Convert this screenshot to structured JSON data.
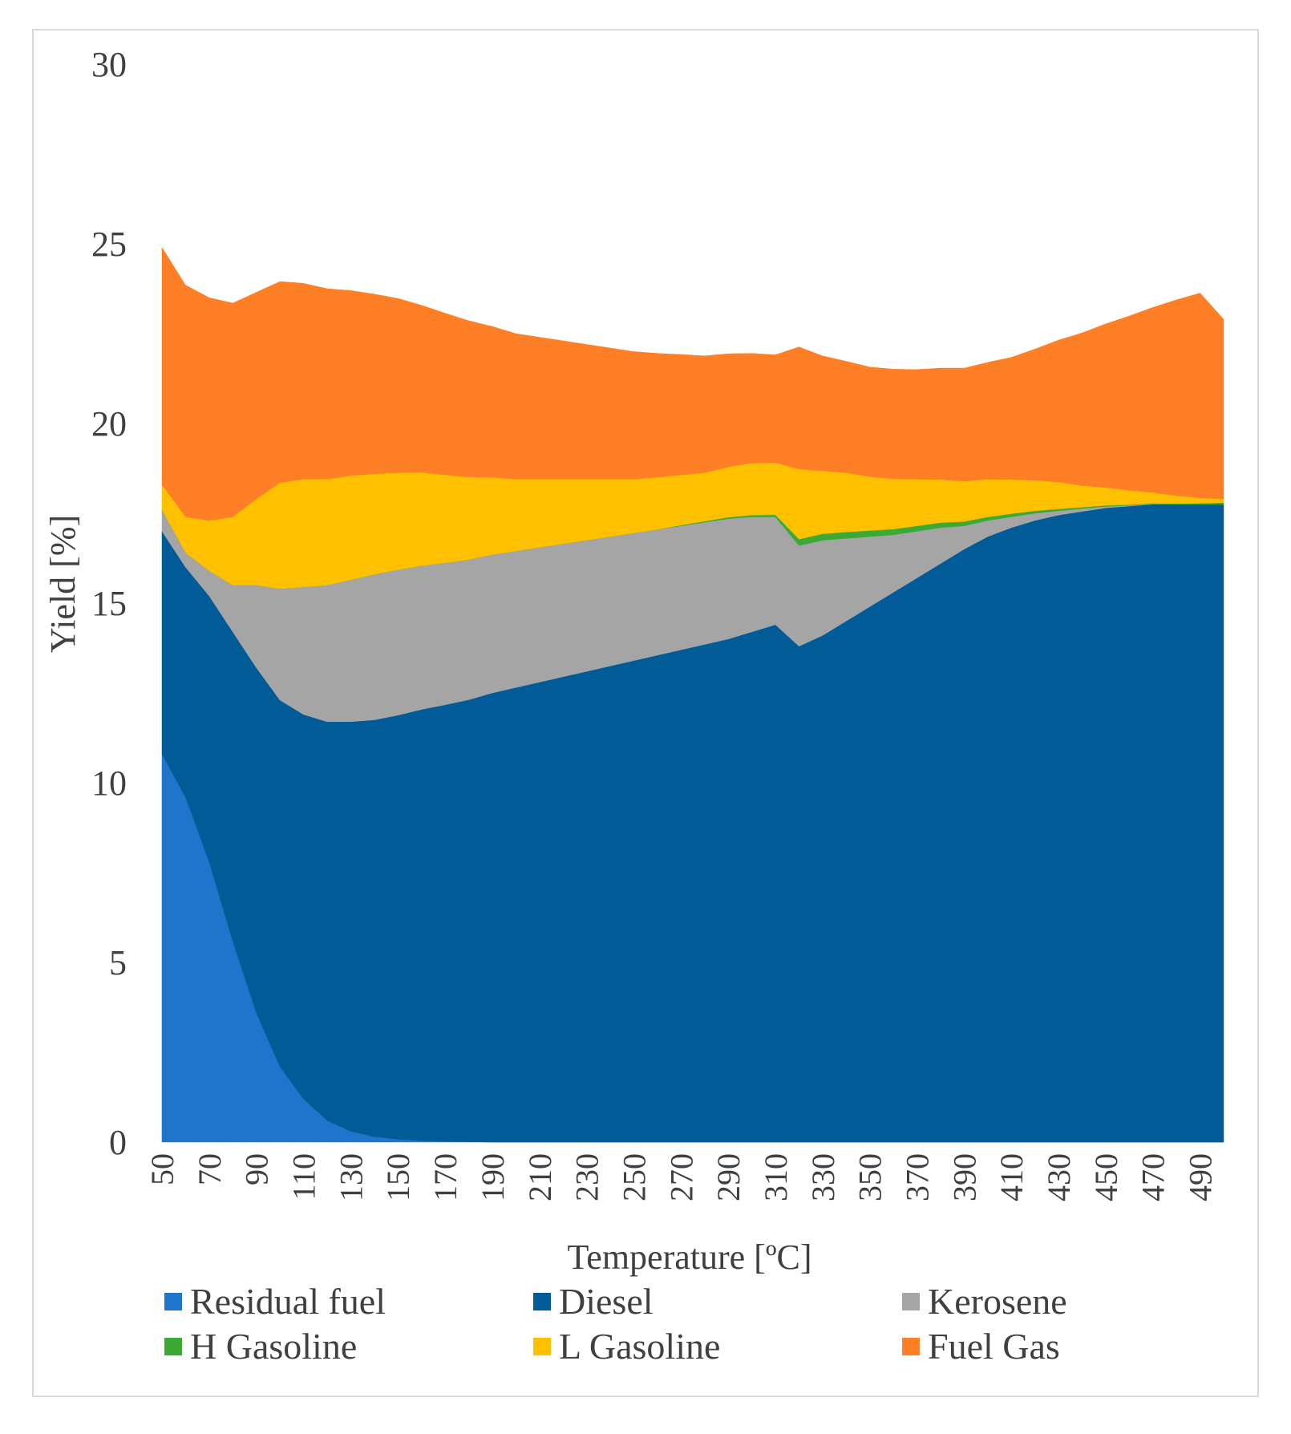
{
  "chart_data": {
    "type": "area",
    "stacked": true,
    "title": "",
    "xlabel": "Temperature [ºC]",
    "ylabel": "Yield [%]",
    "ylim": [
      0,
      30
    ],
    "yticks": [
      "0",
      "5",
      "10",
      "15",
      "20",
      "25",
      "30"
    ],
    "xtick_labels": [
      "50",
      "70",
      "90",
      "110",
      "130",
      "150",
      "170",
      "190",
      "210",
      "230",
      "250",
      "270",
      "290",
      "310",
      "330",
      "350",
      "370",
      "390",
      "410",
      "430",
      "450",
      "470",
      "490"
    ],
    "x": [
      50,
      60,
      70,
      80,
      90,
      100,
      110,
      120,
      130,
      140,
      150,
      160,
      170,
      180,
      190,
      200,
      210,
      220,
      230,
      240,
      250,
      260,
      270,
      280,
      290,
      300,
      310,
      320,
      330,
      340,
      350,
      360,
      370,
      380,
      390,
      400,
      410,
      420,
      430,
      440,
      450,
      460,
      470,
      480,
      490,
      500
    ],
    "series": [
      {
        "name": "Residual fuel",
        "color": "#1f75cc",
        "values": [
          10.8,
          9.6,
          7.8,
          5.6,
          3.6,
          2.1,
          1.2,
          0.6,
          0.3,
          0.15,
          0.08,
          0.04,
          0.02,
          0.01,
          0,
          0,
          0,
          0,
          0,
          0,
          0,
          0,
          0,
          0,
          0,
          0,
          0,
          0,
          0,
          0,
          0,
          0,
          0,
          0,
          0,
          0,
          0,
          0,
          0,
          0,
          0,
          0,
          0,
          0,
          0,
          0
        ]
      },
      {
        "name": "Diesel",
        "color": "#005b96",
        "values": [
          6.2,
          6.4,
          7.4,
          8.6,
          9.6,
          10.2,
          10.7,
          11.1,
          11.4,
          11.6,
          11.8,
          12.0,
          12.15,
          12.3,
          12.5,
          12.65,
          12.8,
          12.95,
          13.1,
          13.25,
          13.4,
          13.55,
          13.7,
          13.85,
          14.0,
          14.2,
          14.4,
          13.8,
          14.1,
          14.5,
          14.9,
          15.3,
          15.7,
          16.1,
          16.5,
          16.85,
          17.1,
          17.3,
          17.45,
          17.55,
          17.65,
          17.7,
          17.75,
          17.75,
          17.75,
          17.75
        ]
      },
      {
        "name": "Kerosene",
        "color": "#a5a5a5",
        "values": [
          0.6,
          0.4,
          0.7,
          1.3,
          2.3,
          3.1,
          3.55,
          3.8,
          3.95,
          4.05,
          4.05,
          4.0,
          3.95,
          3.9,
          3.85,
          3.8,
          3.75,
          3.7,
          3.65,
          3.6,
          3.55,
          3.5,
          3.45,
          3.4,
          3.35,
          3.2,
          3.0,
          2.8,
          2.65,
          2.3,
          1.95,
          1.6,
          1.3,
          1.0,
          0.65,
          0.45,
          0.3,
          0.2,
          0.12,
          0.08,
          0.04,
          0.02,
          0.01,
          0,
          0,
          0
        ]
      },
      {
        "name": "H Gasoline",
        "color": "#3aaa35",
        "values": [
          0,
          0,
          0,
          0,
          0,
          0,
          0,
          0,
          0,
          0,
          0,
          0,
          0,
          0,
          0,
          0,
          0,
          0,
          0,
          0,
          0,
          0,
          0.02,
          0.03,
          0.04,
          0.05,
          0.06,
          0.18,
          0.18,
          0.18,
          0.17,
          0.16,
          0.15,
          0.14,
          0.12,
          0.1,
          0.09,
          0.07,
          0.05,
          0.04,
          0.03,
          0.02,
          0.02,
          0.02,
          0.03,
          0.05
        ]
      },
      {
        "name": "L Gasoline",
        "color": "#ffc000",
        "values": [
          0.7,
          1.0,
          1.4,
          1.9,
          2.4,
          2.95,
          3.0,
          2.95,
          2.9,
          2.8,
          2.7,
          2.6,
          2.45,
          2.3,
          2.15,
          2.0,
          1.9,
          1.8,
          1.7,
          1.6,
          1.5,
          1.45,
          1.4,
          1.35,
          1.4,
          1.45,
          1.45,
          1.95,
          1.75,
          1.65,
          1.5,
          1.4,
          1.3,
          1.2,
          1.12,
          1.05,
          0.95,
          0.85,
          0.75,
          0.6,
          0.5,
          0.4,
          0.3,
          0.22,
          0.15,
          0.1
        ]
      },
      {
        "name": "Fuel Gas",
        "color": "#ff7f27",
        "values": [
          6.6,
          6.45,
          6.2,
          5.95,
          5.75,
          5.6,
          5.45,
          5.3,
          5.15,
          5.0,
          4.85,
          4.65,
          4.5,
          4.35,
          4.2,
          4.05,
          3.95,
          3.85,
          3.75,
          3.65,
          3.55,
          3.45,
          3.35,
          3.25,
          3.15,
          3.05,
          3.0,
          3.4,
          3.2,
          3.1,
          3.05,
          3.05,
          3.05,
          3.1,
          3.15,
          3.25,
          3.4,
          3.65,
          3.95,
          4.25,
          4.55,
          4.85,
          5.15,
          5.45,
          5.7,
          5.0
        ]
      }
    ],
    "legend": {
      "position": "bottom",
      "columns": 3
    }
  }
}
